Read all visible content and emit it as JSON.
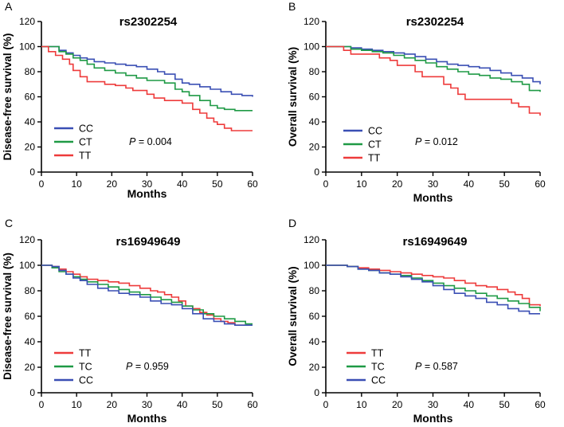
{
  "figure": {
    "colors": {
      "blue": "#3a4fb4",
      "green": "#1f9a45",
      "red": "#ee3b3b"
    }
  },
  "chart_data": [
    {
      "panel": "A",
      "type": "line",
      "title": "rs2302254",
      "xlabel": "Months",
      "ylabel": "Disease-free survival (%)",
      "xlim": [
        0,
        60
      ],
      "ylim": [
        0,
        120
      ],
      "xticks": [
        0,
        10,
        20,
        30,
        40,
        50,
        60
      ],
      "yticks": [
        0,
        20,
        40,
        60,
        80,
        100,
        120
      ],
      "pvalue_label": "P",
      "pvalue": "= 0.004",
      "series": [
        {
          "name": "CC",
          "color": "#3a4fb4",
          "x": [
            0,
            3,
            5,
            7,
            9,
            11,
            13,
            15,
            18,
            21,
            24,
            27,
            30,
            33,
            35,
            38,
            40,
            42,
            45,
            48,
            51,
            54,
            57,
            60
          ],
          "y": [
            100,
            100,
            97,
            95,
            93,
            91,
            90,
            88,
            87,
            86,
            85,
            84,
            82,
            80,
            78,
            74,
            71,
            70,
            68,
            66,
            64,
            62,
            61,
            60
          ]
        },
        {
          "name": "CT",
          "color": "#1f9a45",
          "x": [
            0,
            3,
            5,
            7,
            9,
            11,
            13,
            15,
            18,
            21,
            24,
            27,
            30,
            33,
            35,
            38,
            40,
            42,
            45,
            48,
            50,
            52,
            55,
            60
          ],
          "y": [
            100,
            100,
            96,
            94,
            91,
            89,
            86,
            83,
            81,
            79,
            77,
            75,
            73,
            73,
            71,
            66,
            64,
            61,
            57,
            53,
            51,
            50,
            49,
            49
          ]
        },
        {
          "name": "TT",
          "color": "#ee3b3b",
          "x": [
            0,
            2,
            4,
            6,
            8,
            9,
            11,
            13,
            15,
            18,
            21,
            24,
            26,
            28,
            30,
            32,
            35,
            38,
            40,
            43,
            45,
            47,
            49,
            50,
            52,
            54,
            57,
            60
          ],
          "y": [
            100,
            96,
            93,
            90,
            86,
            81,
            76,
            72,
            72,
            70,
            69,
            67,
            65,
            65,
            62,
            59,
            57,
            57,
            55,
            50,
            47,
            43,
            40,
            38,
            35,
            33,
            33,
            33
          ]
        }
      ]
    },
    {
      "panel": "B",
      "type": "line",
      "title": "rs2302254",
      "xlabel": "Months",
      "ylabel": "Overall survival (%)",
      "xlim": [
        0,
        60
      ],
      "ylim": [
        0,
        120
      ],
      "xticks": [
        0,
        10,
        20,
        30,
        40,
        50,
        60
      ],
      "yticks": [
        0,
        20,
        40,
        60,
        80,
        100,
        120
      ],
      "pvalue_label": "P",
      "pvalue": "= 0.012",
      "series": [
        {
          "name": "CC",
          "color": "#3a4fb4",
          "x": [
            0,
            5,
            7,
            10,
            13,
            16,
            19,
            22,
            25,
            28,
            31,
            34,
            37,
            40,
            43,
            46,
            49,
            52,
            55,
            58,
            60
          ],
          "y": [
            100,
            100,
            99,
            98,
            97,
            96,
            95,
            94,
            92,
            90,
            88,
            86,
            85,
            84,
            83,
            81,
            79,
            77,
            75,
            72,
            70
          ]
        },
        {
          "name": "CT",
          "color": "#1f9a45",
          "x": [
            0,
            5,
            7,
            10,
            13,
            16,
            19,
            22,
            25,
            28,
            31,
            34,
            37,
            40,
            43,
            46,
            49,
            52,
            55,
            57,
            60
          ],
          "y": [
            100,
            100,
            98,
            97,
            96,
            95,
            93,
            91,
            89,
            87,
            84,
            82,
            80,
            78,
            77,
            75,
            74,
            72,
            70,
            65,
            64
          ]
        },
        {
          "name": "TT",
          "color": "#ee3b3b",
          "x": [
            0,
            5,
            7,
            10,
            15,
            18,
            20,
            22,
            25,
            27,
            30,
            33,
            35,
            37,
            39,
            42,
            45,
            50,
            52,
            54,
            57,
            60
          ],
          "y": [
            100,
            97,
            94,
            94,
            91,
            89,
            85,
            85,
            80,
            76,
            76,
            70,
            67,
            62,
            58,
            58,
            58,
            58,
            55,
            52,
            47,
            45
          ]
        }
      ]
    },
    {
      "panel": "C",
      "type": "line",
      "title": "rs16949649",
      "xlabel": "Months",
      "ylabel": "Disease-free survival (%)",
      "xlim": [
        0,
        60
      ],
      "ylim": [
        0,
        120
      ],
      "xticks": [
        0,
        10,
        20,
        30,
        40,
        50,
        60
      ],
      "yticks": [
        0,
        20,
        40,
        60,
        80,
        100,
        120
      ],
      "pvalue_label": "P",
      "pvalue": "= 0.959",
      "series": [
        {
          "name": "TT",
          "color": "#ee3b3b",
          "x": [
            0,
            3,
            5,
            7,
            9,
            11,
            13,
            16,
            19,
            22,
            25,
            28,
            31,
            33,
            35,
            37,
            39,
            41,
            43,
            45,
            47,
            49,
            51,
            53,
            55,
            57,
            60
          ],
          "y": [
            100,
            99,
            97,
            95,
            93,
            91,
            89,
            88,
            87,
            86,
            84,
            82,
            80,
            79,
            77,
            75,
            72,
            68,
            66,
            63,
            61,
            58,
            56,
            55,
            53,
            53,
            53
          ]
        },
        {
          "name": "TC",
          "color": "#1f9a45",
          "x": [
            0,
            3,
            5,
            7,
            9,
            11,
            13,
            16,
            19,
            22,
            25,
            28,
            31,
            34,
            37,
            40,
            43,
            46,
            49,
            52,
            55,
            58,
            60
          ],
          "y": [
            100,
            98,
            95,
            93,
            91,
            89,
            87,
            85,
            83,
            81,
            79,
            77,
            75,
            73,
            71,
            68,
            65,
            62,
            60,
            58,
            56,
            54,
            54
          ]
        },
        {
          "name": "CC",
          "color": "#3a4fb4",
          "x": [
            0,
            3,
            5,
            7,
            9,
            11,
            13,
            16,
            19,
            22,
            25,
            28,
            31,
            34,
            37,
            40,
            43,
            46,
            49,
            52,
            55,
            58,
            60
          ],
          "y": [
            100,
            99,
            96,
            93,
            90,
            88,
            85,
            82,
            80,
            78,
            77,
            75,
            72,
            70,
            69,
            66,
            62,
            58,
            56,
            54,
            53,
            53,
            53
          ]
        }
      ]
    },
    {
      "panel": "D",
      "type": "line",
      "title": "rs16949649",
      "xlabel": "Months",
      "ylabel": "Overall survival (%)",
      "xlim": [
        0,
        60
      ],
      "ylim": [
        0,
        120
      ],
      "xticks": [
        0,
        10,
        20,
        30,
        40,
        50,
        60
      ],
      "yticks": [
        0,
        20,
        40,
        60,
        80,
        100,
        120
      ],
      "pvalue_label": "P",
      "pvalue": "= 0.587",
      "series": [
        {
          "name": "TT",
          "color": "#ee3b3b",
          "x": [
            0,
            6,
            9,
            12,
            15,
            18,
            21,
            24,
            27,
            30,
            33,
            36,
            39,
            42,
            45,
            48,
            51,
            53,
            55,
            57,
            60
          ],
          "y": [
            100,
            99,
            98,
            97,
            96,
            95,
            94,
            93,
            92,
            91,
            90,
            88,
            86,
            84,
            83,
            81,
            79,
            77,
            74,
            69,
            68
          ]
        },
        {
          "name": "TC",
          "color": "#1f9a45",
          "x": [
            0,
            6,
            9,
            12,
            15,
            18,
            21,
            24,
            27,
            30,
            33,
            36,
            39,
            42,
            45,
            48,
            51,
            54,
            57,
            60
          ],
          "y": [
            100,
            99,
            97,
            96,
            94,
            93,
            92,
            90,
            88,
            86,
            84,
            82,
            80,
            78,
            76,
            74,
            72,
            70,
            67,
            64
          ]
        },
        {
          "name": "CC",
          "color": "#3a4fb4",
          "x": [
            0,
            6,
            9,
            12,
            15,
            18,
            21,
            24,
            27,
            30,
            33,
            36,
            39,
            42,
            45,
            48,
            51,
            54,
            57,
            60
          ],
          "y": [
            100,
            99,
            97,
            96,
            94,
            93,
            91,
            89,
            87,
            84,
            81,
            78,
            76,
            74,
            71,
            69,
            66,
            64,
            62,
            62
          ]
        }
      ]
    }
  ]
}
